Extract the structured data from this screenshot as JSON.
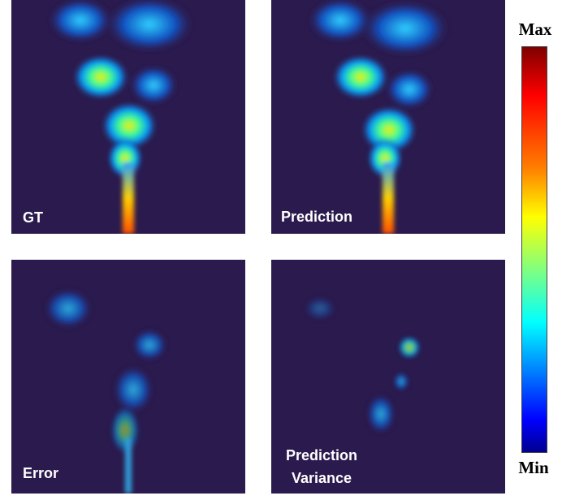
{
  "panels": [
    {
      "label": "GT"
    },
    {
      "label": "Prediction"
    },
    {
      "label": "Error"
    },
    {
      "label": "Prediction Variance"
    }
  ],
  "colorbar": {
    "max_label": "Max",
    "min_label": "Min"
  }
}
